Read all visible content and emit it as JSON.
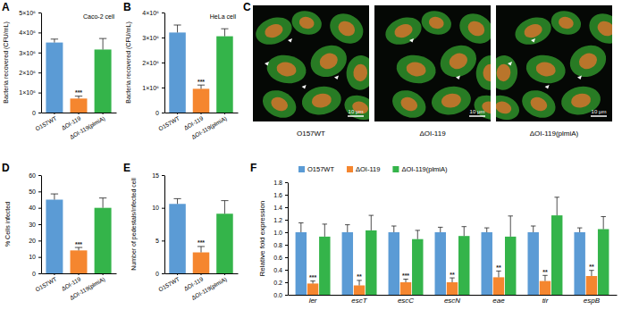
{
  "chart_data": [
    {
      "panel": "A",
      "type": "bar",
      "title": "Caco-2 cell",
      "y_label": "Bacteria recovered (CFU/mL)",
      "categories": [
        "O157WT",
        "ΔOI-119",
        "ΔOI-119(plmiA)"
      ],
      "values": [
        3500000,
        700000,
        3150000
      ],
      "errors": [
        170000,
        120000,
        550000
      ],
      "colors": [
        "#5B9BD5",
        "#F5862F",
        "#34B44A"
      ],
      "annotations": [
        null,
        "***",
        null
      ],
      "ylim": [
        0,
        5000000
      ],
      "yticks": [
        0,
        {
          "value": 1000000,
          "label": "1×10⁶"
        },
        {
          "value": 2000000,
          "label": "2×10⁶"
        },
        {
          "value": 3000000,
          "label": "3×10⁶"
        },
        {
          "value": 4000000,
          "label": "4×10⁶"
        },
        {
          "value": 5000000,
          "label": "5×10⁶"
        }
      ]
    },
    {
      "panel": "B",
      "type": "bar",
      "title": "HeLa cell",
      "y_label": "Bacteria recovered (CFU/mL)",
      "categories": [
        "O157WT",
        "ΔOI-119",
        "ΔOI-119(plmiA)"
      ],
      "values": [
        3200000,
        950000,
        3050000
      ],
      "errors": [
        300000,
        150000,
        300000
      ],
      "colors": [
        "#5B9BD5",
        "#F5862F",
        "#34B44A"
      ],
      "annotations": [
        null,
        "***",
        null
      ],
      "ylim": [
        0,
        4000000
      ],
      "yticks": [
        0,
        {
          "value": 1000000,
          "label": "1×10⁶"
        },
        {
          "value": 2000000,
          "label": "2×10⁶"
        },
        {
          "value": 3000000,
          "label": "3×10⁶"
        },
        {
          "value": 4000000,
          "label": "4×10⁶"
        }
      ]
    },
    {
      "panel": "C",
      "type": "image",
      "captions": [
        "O157WT",
        "ΔOI-119",
        "ΔOI-119(plmiA)"
      ],
      "scale_bar": "10 μm"
    },
    {
      "panel": "D",
      "type": "bar",
      "y_label": "% Cells infected",
      "categories": [
        "O157WT",
        "ΔOI-119",
        "ΔOI-119(plmiA)"
      ],
      "values": [
        45,
        14,
        40
      ],
      "errors": [
        3.5,
        1.8,
        6
      ],
      "colors": [
        "#5B9BD5",
        "#F5862F",
        "#34B44A"
      ],
      "annotations": [
        null,
        "***",
        null
      ],
      "ylim": [
        0,
        60
      ],
      "yticks": [
        0,
        10,
        20,
        30,
        40,
        50,
        60
      ]
    },
    {
      "panel": "E",
      "type": "bar",
      "y_label": "Number of pedestals/infected cell",
      "categories": [
        "O157WT",
        "ΔOI-119",
        "ΔOI-119(plmiA)"
      ],
      "values": [
        10.6,
        3.2,
        9.1
      ],
      "errors": [
        0.8,
        0.9,
        2.0
      ],
      "colors": [
        "#5B9BD5",
        "#F5862F",
        "#34B44A"
      ],
      "annotations": [
        null,
        "***",
        null
      ],
      "ylim": [
        0,
        15
      ],
      "yticks": [
        0,
        5,
        10,
        15
      ]
    },
    {
      "panel": "F",
      "type": "bar",
      "y_label": "Relative fold expression",
      "legend": "top",
      "categories": [
        "ler",
        "escT",
        "escC",
        "escN",
        "eae",
        "tir",
        "espB"
      ],
      "series": [
        {
          "name": "O157WT",
          "color": "#5B9BD5",
          "values": [
            1.0,
            1.0,
            1.0,
            1.0,
            1.0,
            1.0,
            1.0
          ],
          "errors": [
            0.15,
            0.12,
            0.1,
            0.08,
            0.07,
            0.1,
            0.07
          ]
        },
        {
          "name": "ΔOI-119",
          "color": "#F5862F",
          "values": [
            0.18,
            0.15,
            0.2,
            0.2,
            0.28,
            0.22,
            0.3
          ],
          "errors": [
            0.04,
            0.08,
            0.05,
            0.07,
            0.1,
            0.09,
            0.09
          ],
          "annotations": [
            "***",
            "**",
            "***",
            "**",
            "**",
            "**",
            "**"
          ]
        },
        {
          "name": "ΔOI-119(plmiA)",
          "color": "#34B44A",
          "values": [
            0.93,
            1.03,
            0.89,
            0.94,
            0.93,
            1.27,
            1.05
          ],
          "errors": [
            0.2,
            0.24,
            0.14,
            0.15,
            0.33,
            0.29,
            0.2
          ]
        }
      ],
      "ylim": [
        0,
        1.8
      ],
      "yticks": [
        {
          "value": 0,
          "label": "0.0"
        },
        {
          "value": 0.2,
          "label": "0.2"
        },
        {
          "value": 0.4,
          "label": "0.4"
        },
        {
          "value": 0.6,
          "label": "0.6"
        },
        {
          "value": 0.8,
          "label": "0.8"
        },
        {
          "value": 1.0,
          "label": "1.0"
        },
        {
          "value": 1.2,
          "label": "1.2"
        },
        {
          "value": 1.4,
          "label": "1.4"
        },
        {
          "value": 1.6,
          "label": "1.6"
        },
        {
          "value": 1.8,
          "label": "1.8"
        }
      ]
    }
  ]
}
